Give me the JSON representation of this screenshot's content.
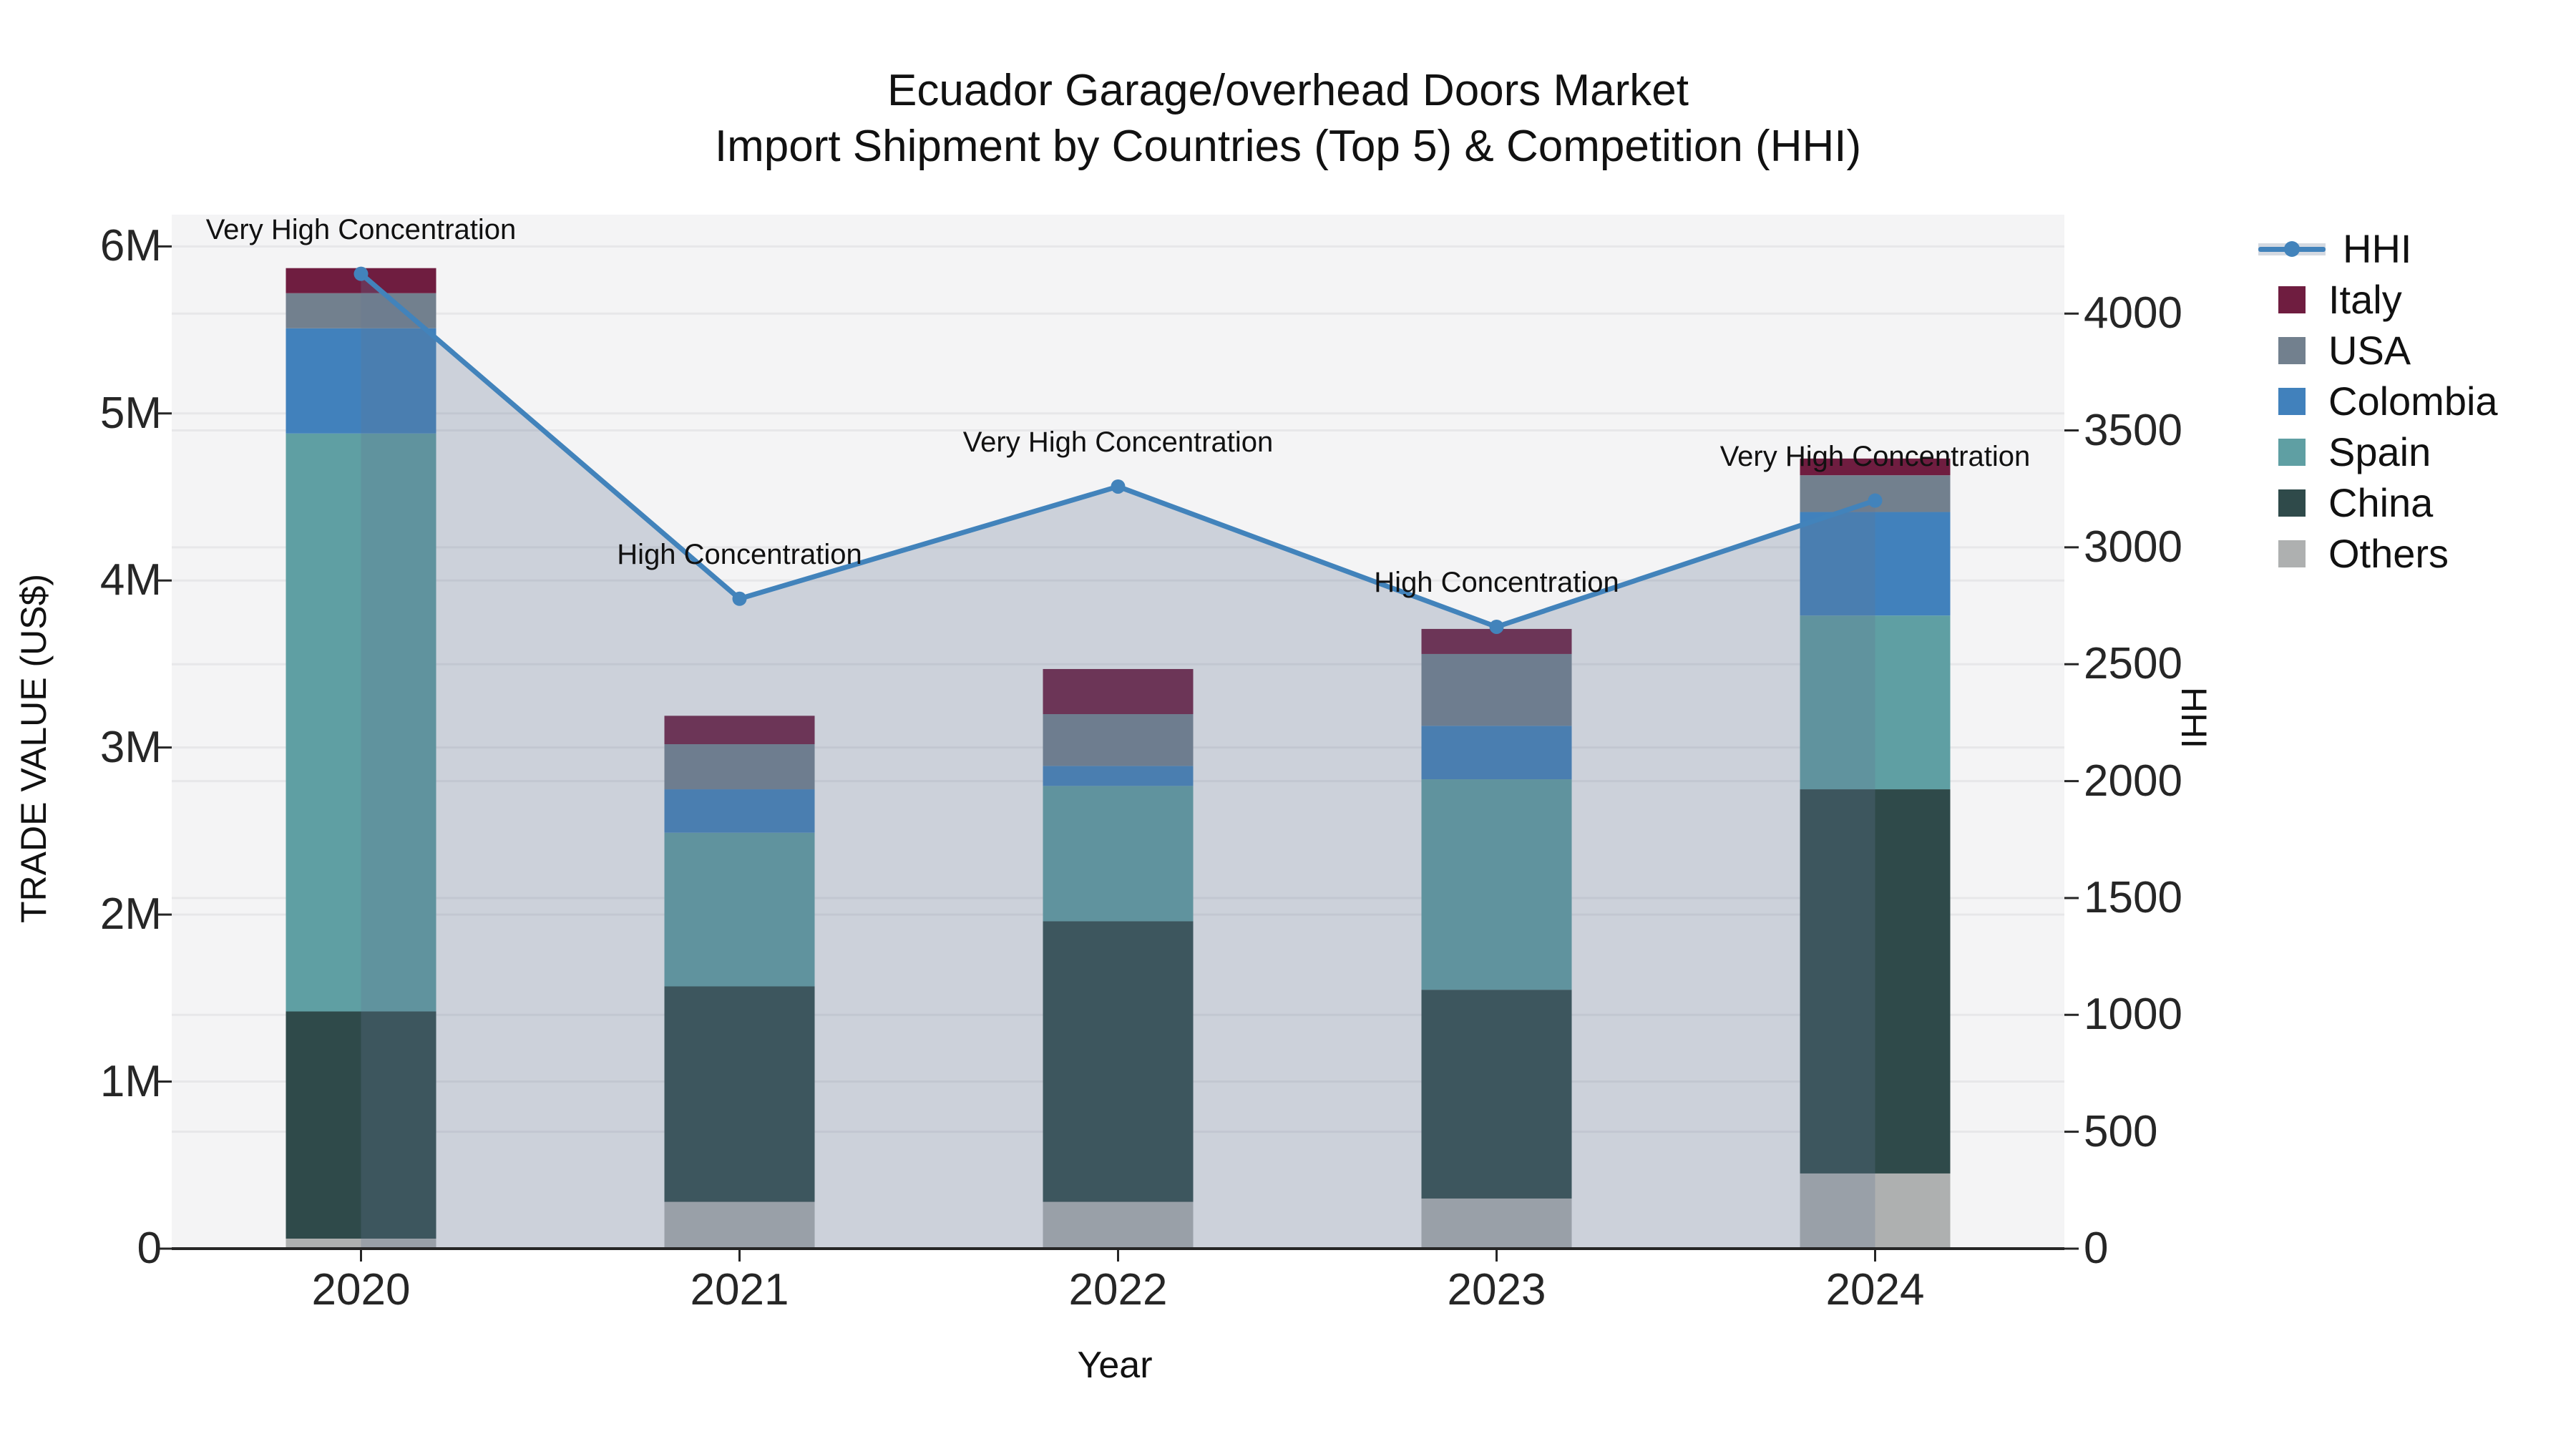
{
  "title": {
    "line1": "Ecuador Garage/overhead Doors Market",
    "line2": "Import Shipment by Countries (Top 5) & Competition (HHI)"
  },
  "axes": {
    "y_left": {
      "label": "TRADE VALUE (US$)",
      "tick_labels": [
        "0",
        "1M",
        "2M",
        "3M",
        "4M",
        "5M",
        "6M"
      ],
      "tick_values_millions": [
        0,
        1,
        2,
        3,
        4,
        5,
        6
      ],
      "max_millions": 6.19
    },
    "y_right": {
      "label": "HHI",
      "tick_labels": [
        "0",
        "500",
        "1000",
        "1500",
        "2000",
        "2500",
        "3000",
        "3500",
        "4000"
      ],
      "tick_values": [
        0,
        500,
        1000,
        1500,
        2000,
        2500,
        3000,
        3500,
        4000
      ],
      "max": 4423
    },
    "x": {
      "label": "Year",
      "categories": [
        "2020",
        "2021",
        "2022",
        "2023",
        "2024"
      ]
    }
  },
  "legend": {
    "items": [
      {
        "label": "HHI",
        "type": "line",
        "color": "#4283bb"
      },
      {
        "label": "Italy",
        "type": "patch",
        "color": "#6f1d40"
      },
      {
        "label": "USA",
        "type": "patch",
        "color": "#72808e"
      },
      {
        "label": "Colombia",
        "type": "patch",
        "color": "#4181bc"
      },
      {
        "label": "Spain",
        "type": "patch",
        "color": "#5f9fa3"
      },
      {
        "label": "China",
        "type": "patch",
        "color": "#2f4a4a"
      },
      {
        "label": "Others",
        "type": "patch",
        "color": "#aeb0b0"
      }
    ]
  },
  "chart_data": {
    "type": "bar",
    "subtype": "stacked-bars-with-dual-axis-line",
    "title": "Ecuador Garage/overhead Doors Market — Import Shipment by Countries (Top 5) & Competition (HHI)",
    "xlabel": "Year",
    "ylabel_left": "TRADE VALUE (US$)",
    "ylabel_right": "HHI",
    "categories": [
      "2020",
      "2021",
      "2022",
      "2023",
      "2024"
    ],
    "unit_left": "millions US$",
    "ylim_left_millions": [
      0,
      6.19
    ],
    "ylim_right": [
      0,
      4423
    ],
    "grid": true,
    "legend_position": "right",
    "series": [
      {
        "name": "Others",
        "stack_order": 1,
        "values_millions": [
          0.06,
          0.28,
          0.28,
          0.3,
          0.45
        ],
        "color": "#aeb0b0"
      },
      {
        "name": "China",
        "stack_order": 2,
        "values_millions": [
          1.36,
          1.29,
          1.68,
          1.25,
          2.3
        ],
        "color": "#2f4a4a"
      },
      {
        "name": "Spain",
        "stack_order": 3,
        "values_millions": [
          3.46,
          0.92,
          0.81,
          1.26,
          1.04
        ],
        "color": "#5f9fa3"
      },
      {
        "name": "Colombia",
        "stack_order": 4,
        "values_millions": [
          0.63,
          0.26,
          0.12,
          0.32,
          0.62
        ],
        "color": "#4181bc"
      },
      {
        "name": "USA",
        "stack_order": 5,
        "values_millions": [
          0.21,
          0.27,
          0.31,
          0.43,
          0.22
        ],
        "color": "#72808e"
      },
      {
        "name": "Italy",
        "stack_order": 6,
        "values_millions": [
          0.15,
          0.17,
          0.27,
          0.15,
          0.1
        ],
        "color": "#6f1d40"
      }
    ],
    "bar_totals_millions": [
      5.87,
      3.19,
      3.47,
      3.71,
      4.73
    ],
    "line_series": {
      "name": "HHI",
      "axis": "right",
      "values": [
        4170,
        2780,
        3260,
        2660,
        3200
      ],
      "color": "#4283bb",
      "area_fill": "rgba(101,120,148,0.28)",
      "marker": "circle"
    },
    "annotations": [
      {
        "category": "2020",
        "text": "Very High Concentration"
      },
      {
        "category": "2021",
        "text": "High Concentration"
      },
      {
        "category": "2022",
        "text": "Very High Concentration"
      },
      {
        "category": "2023",
        "text": "High Concentration"
      },
      {
        "category": "2024",
        "text": "Very High Concentration"
      }
    ]
  },
  "colors": {
    "figure_background": "#ffffff",
    "plot_background": "#f4f4f5",
    "gridline": "#e7e7e9",
    "axis_line": "#262626",
    "tick_text": "#262626",
    "hhi_line": "#4283bb"
  }
}
